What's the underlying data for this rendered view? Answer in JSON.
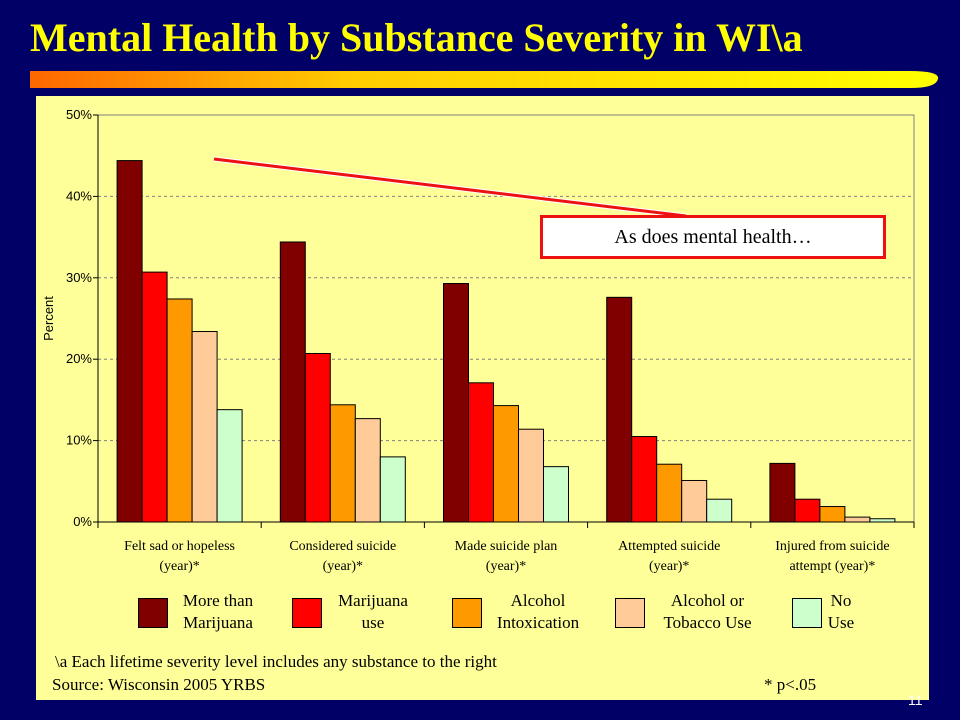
{
  "slide": {
    "title": "Mental Health by Substance Severity in WI\\a",
    "page_number": "11",
    "footnote": "\\a  Each lifetime severity level includes any substance to the right",
    "source": "Source: Wisconsin 2005 YRBS",
    "significance_note": "* p<.05",
    "callout": "As does mental health…"
  },
  "legend": [
    {
      "line1": "More than",
      "line2": "Marijuana",
      "color": "#800000"
    },
    {
      "line1": "Marijuana",
      "line2": "use",
      "color": "#FF0000"
    },
    {
      "line1": "Alcohol",
      "line2": "Intoxication",
      "color": "#FF9900"
    },
    {
      "line1": "Alcohol or",
      "line2": "Tobacco Use",
      "color": "#FFCC99"
    },
    {
      "line1": "No",
      "line2": "Use",
      "color": "#CCFFCC"
    }
  ],
  "chart_data": {
    "type": "bar",
    "ylabel": "Percent",
    "ylim": [
      0,
      50
    ],
    "yticks": [
      "0%",
      "10%",
      "20%",
      "30%",
      "40%",
      "50%"
    ],
    "grid": true,
    "categories": [
      [
        "Felt sad or hopeless",
        "(year)*"
      ],
      [
        "Considered suicide",
        "(year)*"
      ],
      [
        "Made suicide plan",
        "(year)*"
      ],
      [
        "Attempted suicide",
        "(year)*"
      ],
      [
        "Injured from suicide",
        "attempt (year)*"
      ]
    ],
    "series": [
      {
        "name": "More than Marijuana",
        "color": "#800000",
        "values": [
          44.4,
          34.4,
          29.3,
          27.6,
          7.2
        ]
      },
      {
        "name": "Marijuana use",
        "color": "#FF0000",
        "values": [
          30.7,
          20.7,
          17.1,
          10.5,
          2.8
        ]
      },
      {
        "name": "Alcohol Intoxication",
        "color": "#FF9900",
        "values": [
          27.4,
          14.4,
          14.3,
          7.1,
          1.9
        ]
      },
      {
        "name": "Alcohol or Tobacco Use",
        "color": "#FFCC99",
        "values": [
          23.4,
          12.7,
          11.4,
          5.1,
          0.6
        ]
      },
      {
        "name": "No Use",
        "color": "#CCFFCC",
        "values": [
          13.8,
          8.0,
          6.8,
          2.8,
          0.4
        ]
      }
    ]
  }
}
